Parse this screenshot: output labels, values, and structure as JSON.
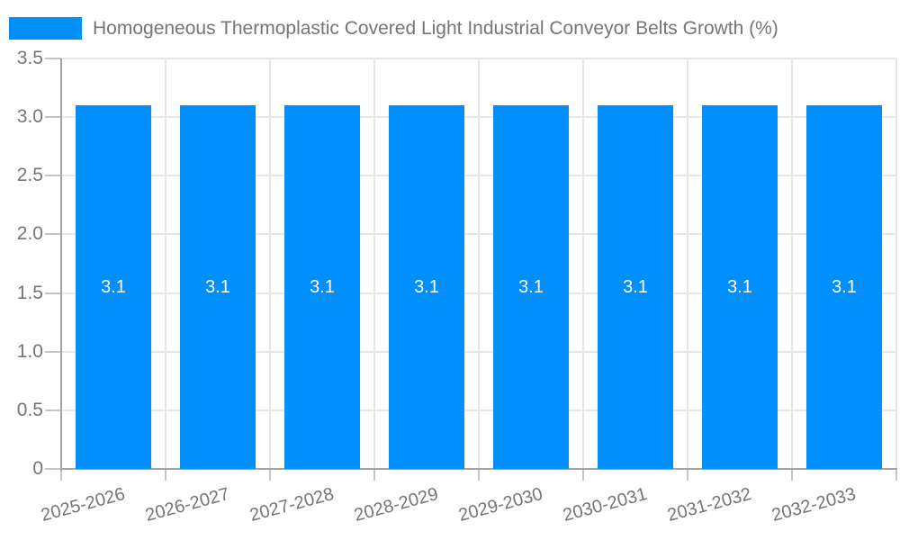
{
  "chart_data": {
    "type": "bar",
    "title": "Homogeneous Thermoplastic Covered Light Industrial Conveyor Belts Growth (%)",
    "legend_label": "Homogeneous Thermoplastic Covered Light Industrial Conveyor Belts Growth (%)",
    "legend_position": "top-left",
    "categories": [
      "2025-2026",
      "2026-2027",
      "2027-2028",
      "2028-2029",
      "2029-2030",
      "2030-2031",
      "2031-2032",
      "2032-2033"
    ],
    "values": [
      3.1,
      3.1,
      3.1,
      3.1,
      3.1,
      3.1,
      3.1,
      3.1
    ],
    "value_labels": [
      "3.1",
      "3.1",
      "3.1",
      "3.1",
      "3.1",
      "3.1",
      "3.1",
      "3.1"
    ],
    "y_ticks": [
      "3.5",
      "3.0",
      "2.5",
      "2.0",
      "1.5",
      "1.0",
      "0.5",
      "0"
    ],
    "y_tick_values": [
      3.5,
      3.0,
      2.5,
      2.0,
      1.5,
      1.0,
      0.5,
      0
    ],
    "ylim": [
      0,
      3.5
    ],
    "xlabel": "",
    "ylabel": "",
    "grid": true
  },
  "colors": {
    "bar": "#008FFB",
    "bar_label": "#ffffff",
    "axis": "#a3a3a3",
    "grid": "#e6e6e6",
    "tick": "#c4c4c4",
    "text": "#757575",
    "background": "#ffffff"
  }
}
